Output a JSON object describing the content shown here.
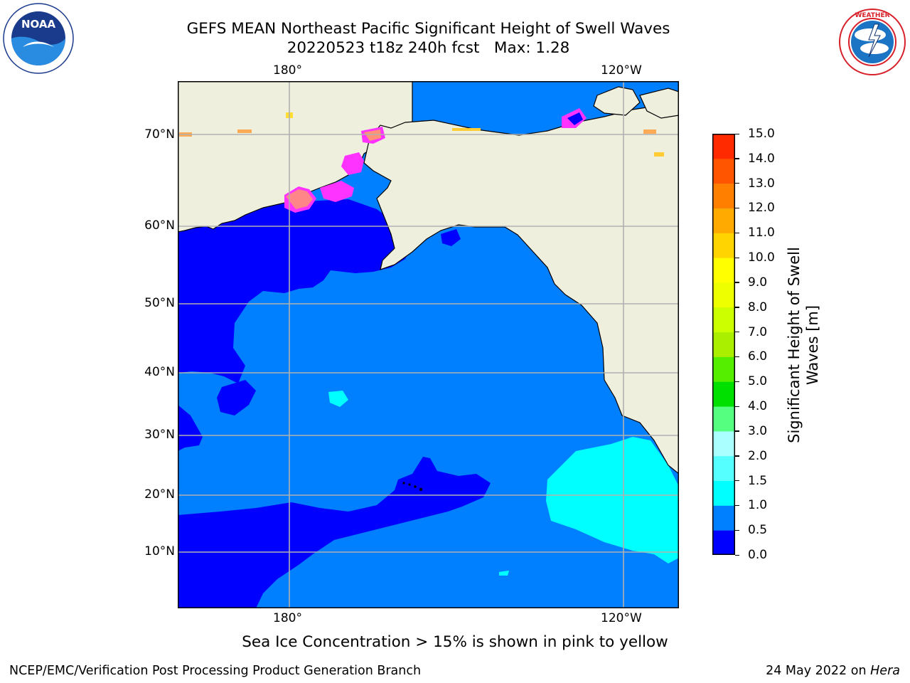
{
  "title": {
    "line1": "GEFS MEAN Northeast Pacific Significant Height of Swell Waves",
    "line2": "20220523 t18z 240h fcst   Max: 1.28"
  },
  "logos": {
    "left": "noaa-logo",
    "left_text": "NOAA",
    "left_ring_text": "NATIONAL OCEANIC AND ATMOSPHERIC ADMINISTRATION · U.S. DEPARTMENT OF COMMERCE",
    "right": "national-weather-service-logo",
    "right_ring_text": "NATIONAL WEATHER SERVICE"
  },
  "map": {
    "projection": "mercator",
    "lon_labels": [
      "180°",
      "120°W"
    ],
    "lat_labels": [
      "70°N",
      "60°N",
      "50°N",
      "40°N",
      "30°N",
      "20°N",
      "10°N"
    ],
    "gridlines": true,
    "colors": {
      "land": "#efefde",
      "swell_0_0_5": "#0000ff",
      "swell_0_5_1_0": "#0080ff",
      "swell_1_0_1_5": "#00ffff",
      "sea_ice": "#ff33ff",
      "grid": "#b0b0b0"
    }
  },
  "colorbar": {
    "label": "Significant Height of Swell Waves [m]",
    "ticks": [
      "15.0",
      "14.0",
      "13.0",
      "12.0",
      "11.0",
      "10.0",
      "9.0",
      "8.0",
      "7.0",
      "6.0",
      "5.0",
      "4.0",
      "3.0",
      "2.0",
      "1.5",
      "1.0",
      "0.5",
      "0.0"
    ],
    "colors": [
      "#0000ff",
      "#0080ff",
      "#00ffff",
      "#55ffff",
      "#aaffff",
      "#55ff80",
      "#00e000",
      "#55ee00",
      "#aaee00",
      "#ccff00",
      "#eeff00",
      "#ffff00",
      "#ffd400",
      "#ffaa00",
      "#ff7f00",
      "#ff5500",
      "#ff2a00",
      "#ff0000"
    ]
  },
  "caption": "Sea Ice Concentration > 15% is shown in pink to yellow",
  "footer": {
    "left": "NCEP/EMC/Verification Post Processing Product Generation Branch",
    "right_date": "24 May 2022 on",
    "right_host": "Hera"
  }
}
